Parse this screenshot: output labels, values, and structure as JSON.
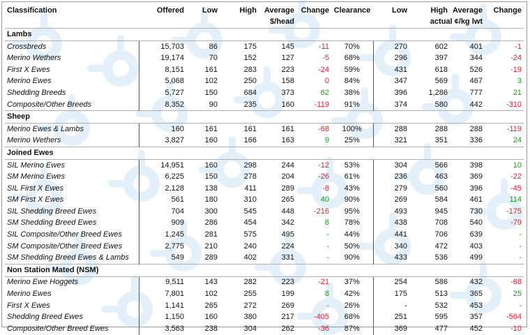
{
  "header": {
    "classification": "Classification",
    "offered": "Offered",
    "low": "Low",
    "high": "High",
    "average": "Average",
    "change": "Change",
    "clearance": "Clearance",
    "low2": "Low",
    "high2": "High",
    "average2": "Average",
    "change2": "Change",
    "unit_head": "$/head",
    "unit_lwt": "actual ¢/kg lwt"
  },
  "colors": {
    "negative": "#e0202b",
    "positive": "#1a9a1a",
    "watermark": "#5aa8e0"
  },
  "sections": [
    {
      "title": "Lambs",
      "rows": [
        {
          "name": "Crossbreds",
          "offered": "15,703",
          "low": "86",
          "high": "175",
          "avg": "145",
          "chg": "-11",
          "chg_sign": "neg",
          "clr": "70%",
          "low2": "270",
          "high2": "602",
          "avg2": "401",
          "chg2": "-1",
          "chg2_sign": "neg"
        },
        {
          "name": "Merino Wethers",
          "offered": "19,174",
          "low": "70",
          "high": "152",
          "avg": "127",
          "chg": "-5",
          "chg_sign": "neg",
          "clr": "68%",
          "low2": "296",
          "high2": "397",
          "avg2": "344",
          "chg2": "-24",
          "chg2_sign": "neg"
        },
        {
          "name": "First X Ewes",
          "offered": "8,151",
          "low": "161",
          "high": "283",
          "avg": "223",
          "chg": "-24",
          "chg_sign": "neg",
          "clr": "59%",
          "low2": "431",
          "high2": "618",
          "avg2": "526",
          "chg2": "-19",
          "chg2_sign": "neg"
        },
        {
          "name": "Merino Ewes",
          "offered": "5,068",
          "low": "102",
          "high": "250",
          "avg": "158",
          "chg": "0",
          "chg_sign": "neg",
          "clr": "84%",
          "low2": "347",
          "high2": "569",
          "avg2": "467",
          "chg2": "3",
          "chg2_sign": "pos"
        },
        {
          "name": "Shedding Breeds",
          "offered": "5,727",
          "low": "150",
          "high": "684",
          "avg": "373",
          "chg": "62",
          "chg_sign": "pos",
          "clr": "38%",
          "low2": "396",
          "high2": "1,286",
          "avg2": "777",
          "chg2": "21",
          "chg2_sign": "pos"
        },
        {
          "name": "Composite/Other Breeds",
          "offered": "8,352",
          "low": "90",
          "high": "235",
          "avg": "160",
          "chg": "-119",
          "chg_sign": "neg",
          "clr": "91%",
          "low2": "374",
          "high2": "580",
          "avg2": "442",
          "chg2": "-310",
          "chg2_sign": "neg"
        }
      ]
    },
    {
      "title": "Sheep",
      "rows": [
        {
          "name": "Merino Ewes & Lambs",
          "offered": "160",
          "low": "161",
          "high": "161",
          "avg": "161",
          "chg": "-68",
          "chg_sign": "neg",
          "clr": "100%",
          "low2": "288",
          "high2": "288",
          "avg2": "288",
          "chg2": "-119",
          "chg2_sign": "neg"
        },
        {
          "name": "Merino Wethers",
          "offered": "3,827",
          "low": "160",
          "high": "166",
          "avg": "163",
          "chg": "9",
          "chg_sign": "pos",
          "clr": "25%",
          "low2": "321",
          "high2": "351",
          "avg2": "336",
          "chg2": "24",
          "chg2_sign": "pos"
        }
      ]
    },
    {
      "title": "Joined Ewes",
      "rows": [
        {
          "name": "SIL Merino Ewes",
          "offered": "14,951",
          "low": "160",
          "high": "298",
          "avg": "244",
          "chg": "-12",
          "chg_sign": "neg",
          "clr": "53%",
          "low2": "304",
          "high2": "566",
          "avg2": "398",
          "chg2": "10",
          "chg2_sign": "pos"
        },
        {
          "name": "SM Merino Ewes",
          "offered": "6,225",
          "low": "150",
          "high": "278",
          "avg": "204",
          "chg": "-26",
          "chg_sign": "neg",
          "clr": "61%",
          "low2": "236",
          "high2": "463",
          "avg2": "369",
          "chg2": "-22",
          "chg2_sign": "neg"
        },
        {
          "name": "SIL First X Ewes",
          "offered": "2,128",
          "low": "138",
          "high": "411",
          "avg": "289",
          "chg": "-8",
          "chg_sign": "neg",
          "clr": "43%",
          "low2": "279",
          "high2": "560",
          "avg2": "396",
          "chg2": "-45",
          "chg2_sign": "neg"
        },
        {
          "name": "SM First X Ewes",
          "offered": "561",
          "low": "180",
          "high": "310",
          "avg": "265",
          "chg": "40",
          "chg_sign": "pos",
          "clr": "90%",
          "low2": "269",
          "high2": "584",
          "avg2": "461",
          "chg2": "114",
          "chg2_sign": "pos"
        },
        {
          "name": "SIL Shedding Breed Ewes",
          "offered": "704",
          "low": "300",
          "high": "545",
          "avg": "448",
          "chg": "-216",
          "chg_sign": "neg",
          "clr": "95%",
          "low2": "493",
          "high2": "945",
          "avg2": "730",
          "chg2": "-175",
          "chg2_sign": "neg"
        },
        {
          "name": "SM Shedding Breed Ewes",
          "offered": "909",
          "low": "286",
          "high": "454",
          "avg": "342",
          "chg": "8",
          "chg_sign": "pos",
          "clr": "78%",
          "low2": "438",
          "high2": "708",
          "avg2": "540",
          "chg2": "-79",
          "chg2_sign": "neg"
        },
        {
          "name": "SIL Composite/Other Breed Ewes",
          "offered": "1,245",
          "low": "281",
          "high": "575",
          "avg": "495",
          "chg": "-",
          "chg_sign": "pos",
          "clr": "44%",
          "low2": "441",
          "high2": "706",
          "avg2": "639",
          "chg2": "-",
          "chg2_sign": "pos"
        },
        {
          "name": "SM Composite/Other Breed Ewes",
          "offered": "2,775",
          "low": "210",
          "high": "240",
          "avg": "224",
          "chg": "-",
          "chg_sign": "pos",
          "clr": "50%",
          "low2": "340",
          "high2": "472",
          "avg2": "403",
          "chg2": "-",
          "chg2_sign": "pos"
        },
        {
          "name": "SM Shedding Breed Ewes & Lambs",
          "offered": "549",
          "low": "289",
          "high": "402",
          "avg": "331",
          "chg": "-",
          "chg_sign": "pos",
          "clr": "90%",
          "low2": "433",
          "high2": "536",
          "avg2": "499",
          "chg2": "-",
          "chg2_sign": "pos"
        }
      ]
    },
    {
      "title": "Non Station Mated (NSM)",
      "rows": [
        {
          "name": "Merino Ewe Hoggets",
          "offered": "9,511",
          "low": "143",
          "high": "282",
          "avg": "223",
          "chg": "-21",
          "chg_sign": "neg",
          "clr": "37%",
          "low2": "254",
          "high2": "586",
          "avg2": "432",
          "chg2": "-68",
          "chg2_sign": "neg"
        },
        {
          "name": "Merino Ewes",
          "offered": "7,801",
          "low": "102",
          "high": "255",
          "avg": "199",
          "chg": "8",
          "chg_sign": "pos",
          "clr": "42%",
          "low2": "175",
          "high2": "513",
          "avg2": "365",
          "chg2": "25",
          "chg2_sign": "pos"
        },
        {
          "name": "First X Ewes",
          "offered": "1,141",
          "low": "265",
          "high": "272",
          "avg": "269",
          "chg": "-",
          "chg_sign": "pos",
          "clr": "26%",
          "low2": "-",
          "high2": "532",
          "avg2": "453",
          "chg2": "-",
          "chg2_sign": "pos"
        },
        {
          "name": "Shedding Breed Ewes",
          "offered": "1,150",
          "low": "160",
          "high": "380",
          "avg": "217",
          "chg": "-405",
          "chg_sign": "neg",
          "clr": "68%",
          "low2": "251",
          "high2": "595",
          "avg2": "357",
          "chg2": "-564",
          "chg2_sign": "neg"
        },
        {
          "name": "Composite/Other Breed Ewes",
          "offered": "3,563",
          "low": "238",
          "high": "304",
          "avg": "262",
          "chg": "-36",
          "chg_sign": "neg",
          "clr": "87%",
          "low2": "369",
          "high2": "477",
          "avg2": "452",
          "chg2": "-10",
          "chg2_sign": "neg"
        }
      ]
    }
  ]
}
